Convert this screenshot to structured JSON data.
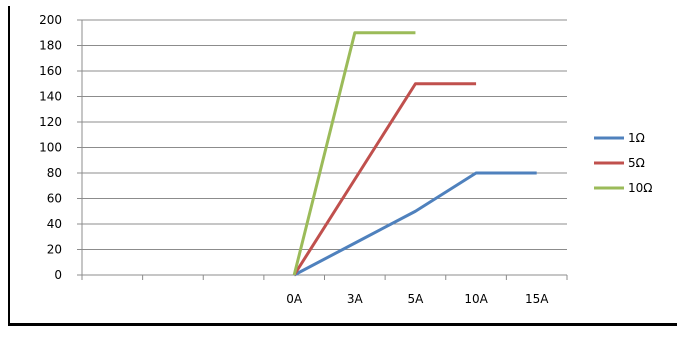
{
  "chart_data": {
    "type": "line",
    "categories": [
      "",
      "",
      "",
      "0A",
      "3A",
      "5A",
      "10A",
      "15A"
    ],
    "series": [
      {
        "name": "1Ω",
        "values": [
          null,
          null,
          null,
          0,
          25,
          50,
          80,
          80
        ],
        "color": "#4f81bd"
      },
      {
        "name": "5Ω",
        "values": [
          null,
          null,
          null,
          0,
          75,
          150,
          150,
          null
        ],
        "color": "#c0504d"
      },
      {
        "name": "10Ω",
        "values": [
          null,
          null,
          null,
          0,
          190,
          190,
          null,
          null
        ],
        "color": "#9bbb59"
      }
    ],
    "ylim": [
      0,
      200
    ],
    "yticks": [
      0,
      20,
      40,
      60,
      80,
      100,
      120,
      140,
      160,
      180,
      200
    ],
    "grid": true,
    "legend_position": "right"
  }
}
